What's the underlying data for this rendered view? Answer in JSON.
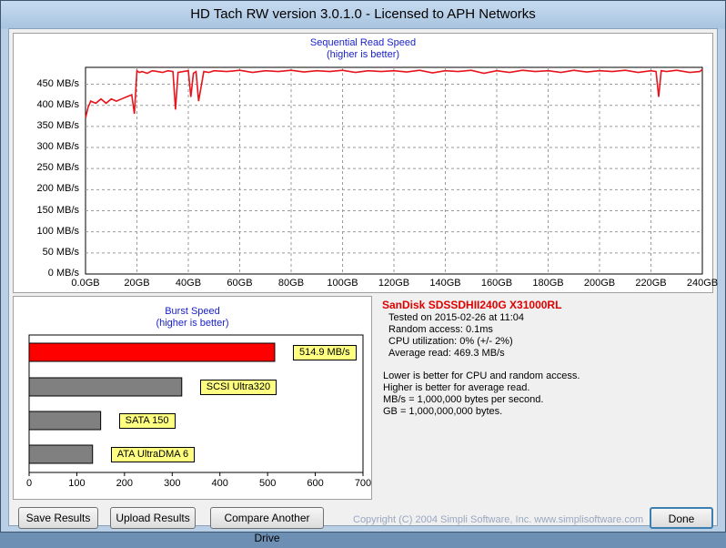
{
  "window": {
    "title": "HD Tach RW version 3.0.1.0 - Licensed to APH Networks"
  },
  "colors": {
    "read_line": "#e8141c",
    "burst_main": "#ff0000",
    "burst_ref": "#808080",
    "title_blue": "#1a22c8",
    "drive_red": "#e00000"
  },
  "sequential": {
    "title": "Sequential Read Speed",
    "subtitle": "(higher is better)",
    "y_ticks": [
      "450 MB/s",
      "400 MB/s",
      "350 MB/s",
      "300 MB/s",
      "250 MB/s",
      "200 MB/s",
      "150 MB/s",
      "100 MB/s",
      "50 MB/s",
      "0 MB/s"
    ],
    "x_ticks": [
      "0.0GB",
      "20GB",
      "40GB",
      "60GB",
      "80GB",
      "100GB",
      "120GB",
      "140GB",
      "160GB",
      "180GB",
      "200GB",
      "220GB",
      "240GB"
    ]
  },
  "chart_data": [
    {
      "type": "line",
      "title": "Sequential Read Speed",
      "subtitle": "(higher is better)",
      "xlabel": "",
      "ylabel": "",
      "xlim": [
        0,
        240
      ],
      "ylim": [
        0,
        490
      ],
      "grid": true,
      "x": [
        0,
        1,
        2,
        4,
        6,
        8,
        10,
        12,
        14,
        16,
        18,
        19,
        20,
        21,
        22,
        24,
        26,
        28,
        30,
        32,
        34,
        35,
        36,
        38,
        40,
        41,
        42,
        43,
        44,
        46,
        48,
        50,
        55,
        60,
        65,
        70,
        75,
        80,
        85,
        90,
        95,
        100,
        105,
        110,
        115,
        120,
        125,
        130,
        135,
        140,
        145,
        150,
        155,
        160,
        165,
        170,
        175,
        180,
        185,
        190,
        195,
        200,
        205,
        210,
        215,
        220,
        222,
        223,
        224,
        226,
        230,
        235,
        239,
        240
      ],
      "y": [
        370,
        395,
        410,
        405,
        415,
        405,
        415,
        410,
        415,
        420,
        425,
        380,
        482,
        478,
        480,
        476,
        482,
        480,
        478,
        482,
        480,
        390,
        478,
        480,
        482,
        420,
        476,
        480,
        410,
        480,
        478,
        482,
        480,
        483,
        478,
        482,
        480,
        483,
        479,
        482,
        480,
        483,
        478,
        482,
        480,
        482,
        479,
        483,
        477,
        482,
        480,
        483,
        476,
        482,
        478,
        483,
        480,
        482,
        478,
        483,
        479,
        482,
        480,
        483,
        478,
        482,
        480,
        420,
        482,
        480,
        483,
        478,
        480,
        485
      ]
    },
    {
      "type": "bar",
      "title": "Burst Speed",
      "subtitle": "(higher is better)",
      "orientation": "horizontal",
      "categories": [
        "514.9 MB/s",
        "SCSI Ultra320",
        "SATA 150",
        "ATA UltraDMA 6"
      ],
      "values": [
        514.9,
        320,
        150,
        133
      ],
      "xlim": [
        0,
        700
      ],
      "x_ticks": [
        "0",
        "100",
        "200",
        "300",
        "400",
        "500",
        "600",
        "700"
      ]
    }
  ],
  "burst": {
    "title": "Burst Speed",
    "subtitle": "(higher is better)",
    "x_ticks": [
      "0",
      "100",
      "200",
      "300",
      "400",
      "500",
      "600",
      "700"
    ]
  },
  "info": {
    "drive_name": "SanDisk SDSSDHII240G X31000RL",
    "lines": [
      "Tested on 2015-02-26 at 11:04",
      "Random access: 0.1ms",
      "CPU utilization: 0% (+/- 2%)",
      "Average read: 469.3 MB/s"
    ],
    "notes": [
      "Lower is better for CPU and random access.",
      "Higher is better for average read.",
      "MB/s = 1,000,000 bytes per second.",
      "GB = 1,000,000,000 bytes."
    ]
  },
  "buttons": {
    "save": "Save Results",
    "upload": "Upload Results",
    "compare": "Compare Another Drive",
    "done": "Done"
  },
  "copyright": "Copyright (C) 2004 Simpli Software, Inc. www.simplisoftware.com"
}
